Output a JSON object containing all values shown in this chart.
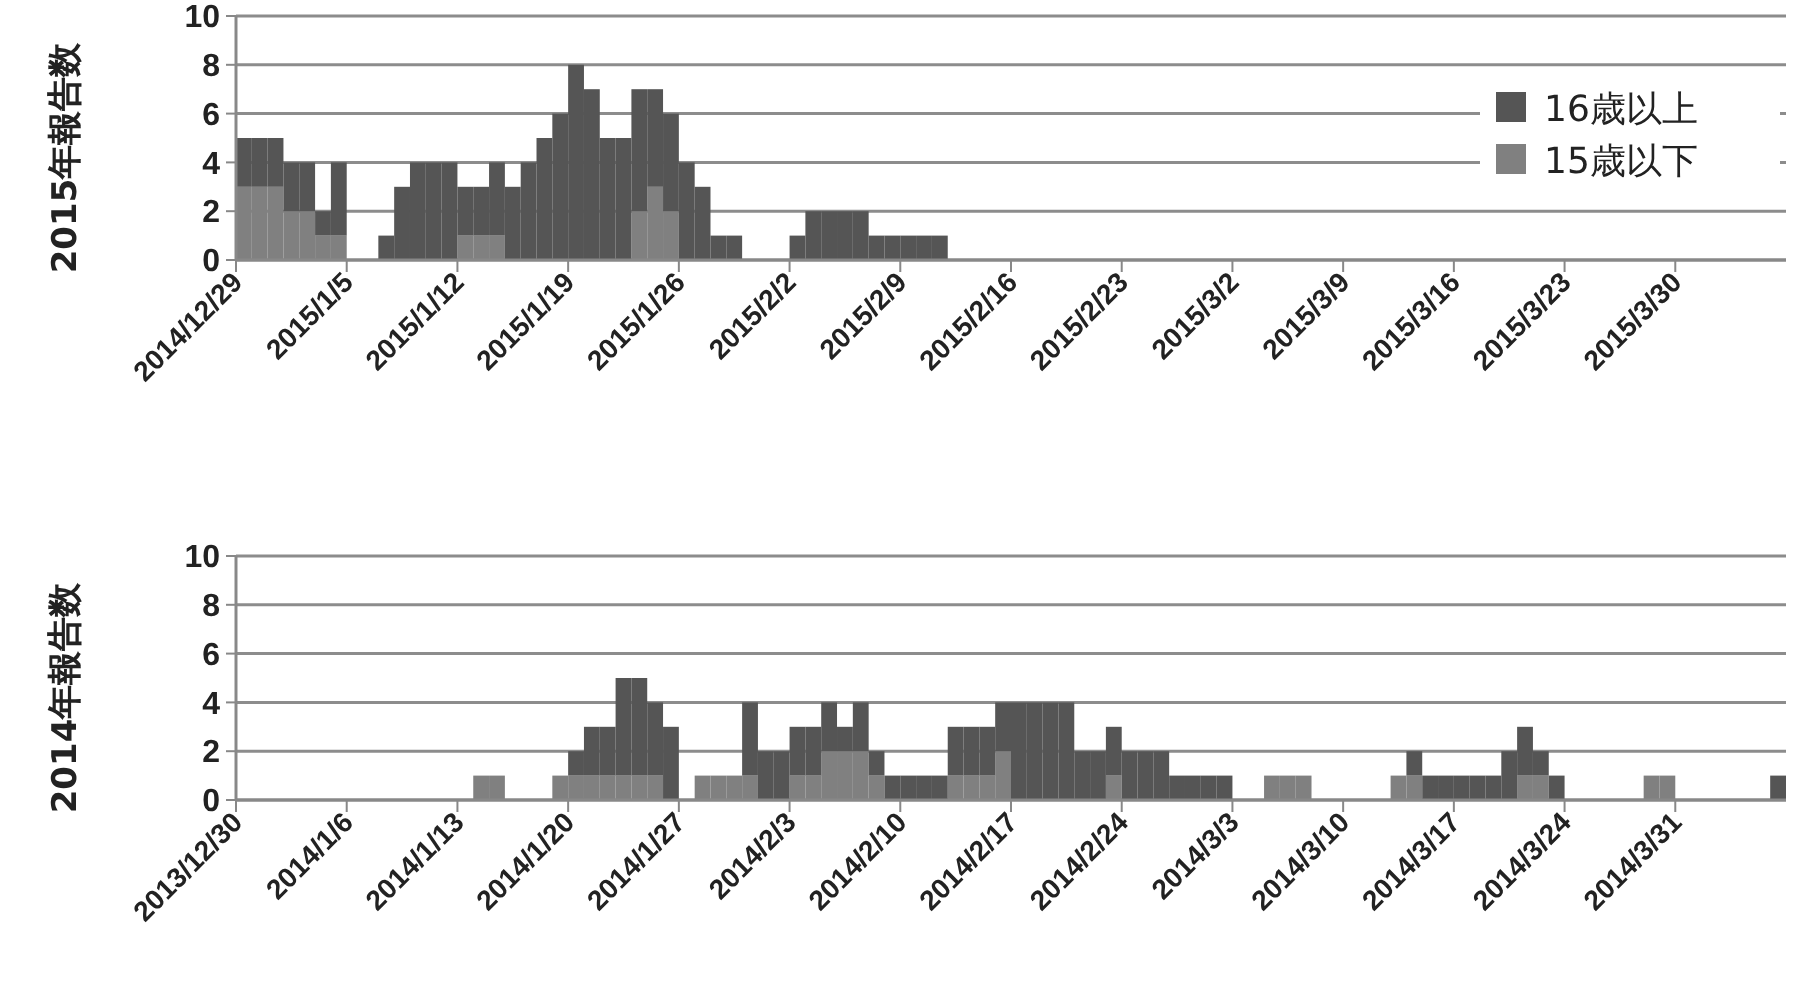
{
  "chart_data": [
    {
      "type": "bar",
      "stacked": true,
      "ylabel": "2015年報告数",
      "ylim": [
        0,
        10
      ],
      "yticks": [
        0,
        2,
        4,
        6,
        8,
        10
      ],
      "grid": "y",
      "legend": "right",
      "xlim": [
        "2014-12-29",
        "2015-04-06"
      ],
      "xticks": [
        {
          "value": "2014-12-29",
          "label": "2014/12/29"
        },
        {
          "value": "2015-01-05",
          "label": "2015/1/5"
        },
        {
          "value": "2015-01-12",
          "label": "2015/1/12"
        },
        {
          "value": "2015-01-19",
          "label": "2015/1/19"
        },
        {
          "value": "2015-01-26",
          "label": "2015/1/26"
        },
        {
          "value": "2015-02-02",
          "label": "2015/2/2"
        },
        {
          "value": "2015-02-09",
          "label": "2015/2/9"
        },
        {
          "value": "2015-02-16",
          "label": "2015/2/16"
        },
        {
          "value": "2015-02-23",
          "label": "2015/2/23"
        },
        {
          "value": "2015-03-02",
          "label": "2015/3/2"
        },
        {
          "value": "2015-03-09",
          "label": "2015/3/9"
        },
        {
          "value": "2015-03-16",
          "label": "2015/3/16"
        },
        {
          "value": "2015-03-23",
          "label": "2015/3/23"
        },
        {
          "value": "2015-03-30",
          "label": "2015/3/30"
        }
      ],
      "x": [
        "2014-12-29",
        "2014-12-30",
        "2014-12-31",
        "2015-01-01",
        "2015-01-02",
        "2015-01-03",
        "2015-01-04",
        "2015-01-05",
        "2015-01-06",
        "2015-01-07",
        "2015-01-08",
        "2015-01-09",
        "2015-01-10",
        "2015-01-11",
        "2015-01-12",
        "2015-01-13",
        "2015-01-14",
        "2015-01-15",
        "2015-01-16",
        "2015-01-17",
        "2015-01-18",
        "2015-01-19",
        "2015-01-20",
        "2015-01-21",
        "2015-01-22",
        "2015-01-23",
        "2015-01-24",
        "2015-01-25",
        "2015-01-26",
        "2015-01-27",
        "2015-01-28",
        "2015-01-29",
        "2015-01-30",
        "2015-01-31",
        "2015-02-01",
        "2015-02-02",
        "2015-02-03",
        "2015-02-04",
        "2015-02-05",
        "2015-02-06",
        "2015-02-07",
        "2015-02-08",
        "2015-02-09",
        "2015-02-10",
        "2015-02-11",
        "2015-02-12",
        "2015-02-13",
        "2015-02-14",
        "2015-02-15",
        "2015-02-16",
        "2015-02-17",
        "2015-02-18",
        "2015-02-19",
        "2015-02-20",
        "2015-02-21",
        "2015-02-22",
        "2015-02-23",
        "2015-02-24",
        "2015-02-25",
        "2015-02-26",
        "2015-02-27",
        "2015-02-28",
        "2015-03-01",
        "2015-03-02",
        "2015-03-03",
        "2015-03-04",
        "2015-03-05",
        "2015-03-06",
        "2015-03-07",
        "2015-03-08",
        "2015-03-09",
        "2015-03-10",
        "2015-03-11",
        "2015-03-12",
        "2015-03-13",
        "2015-03-14",
        "2015-03-15",
        "2015-03-16",
        "2015-03-17",
        "2015-03-18",
        "2015-03-19",
        "2015-03-20",
        "2015-03-21",
        "2015-03-22",
        "2015-03-23",
        "2015-03-24",
        "2015-03-25",
        "2015-03-26",
        "2015-03-27",
        "2015-03-28",
        "2015-03-29",
        "2015-03-30",
        "2015-03-31",
        "2015-04-01",
        "2015-04-02",
        "2015-04-03",
        "2015-04-04",
        "2015-04-05"
      ],
      "series": [
        {
          "name": "15歳以下",
          "color": "#808080",
          "values": [
            3,
            3,
            3,
            2,
            2,
            1,
            1,
            0,
            0,
            0,
            0,
            0,
            0,
            0,
            1,
            1,
            1,
            0,
            0,
            0,
            0,
            0,
            0,
            0,
            0,
            2,
            3,
            2,
            0,
            0,
            0,
            0,
            0,
            0,
            0,
            0,
            0,
            0,
            0,
            0,
            0,
            0,
            0,
            0,
            0,
            0,
            0,
            0,
            0,
            0,
            0,
            0,
            0,
            0,
            0,
            0,
            0,
            0,
            0,
            0,
            0,
            0,
            0,
            0,
            0,
            0,
            0,
            0,
            0,
            0,
            0,
            0,
            0,
            0,
            0,
            0,
            0,
            0,
            0,
            0,
            0,
            0,
            0,
            0,
            0,
            0,
            0,
            0,
            0,
            0,
            0,
            0,
            0,
            0,
            0,
            0,
            0,
            0
          ]
        },
        {
          "name": "16歳以上",
          "color": "#555555",
          "values": [
            2,
            2,
            2,
            2,
            2,
            1,
            3,
            0,
            0,
            1,
            3,
            4,
            4,
            4,
            2,
            2,
            3,
            3,
            4,
            5,
            6,
            8,
            7,
            5,
            5,
            5,
            4,
            4,
            4,
            3,
            1,
            1,
            0,
            0,
            0,
            1,
            2,
            2,
            2,
            2,
            1,
            1,
            1,
            1,
            1,
            0,
            0,
            0,
            0,
            0,
            0,
            0,
            0,
            0,
            0,
            0,
            0,
            0,
            0,
            0,
            0,
            0,
            0,
            0,
            0,
            0,
            0,
            0,
            0,
            0,
            0,
            0,
            0,
            0,
            0,
            0,
            0,
            0,
            0,
            0,
            0,
            0,
            0,
            0,
            0,
            0,
            0,
            0,
            0,
            0,
            0,
            0,
            0,
            0,
            0,
            0,
            0,
            0
          ]
        }
      ]
    },
    {
      "type": "bar",
      "stacked": true,
      "ylabel": "2014年報告数",
      "ylim": [
        0,
        10
      ],
      "yticks": [
        0,
        2,
        4,
        6,
        8,
        10
      ],
      "grid": "y",
      "legend": false,
      "xlim": [
        "2013-12-30",
        "2014-04-07"
      ],
      "xticks": [
        {
          "value": "2013-12-30",
          "label": "2013/12/30"
        },
        {
          "value": "2014-01-06",
          "label": "2014/1/6"
        },
        {
          "value": "2014-01-13",
          "label": "2014/1/13"
        },
        {
          "value": "2014-01-20",
          "label": "2014/1/20"
        },
        {
          "value": "2014-01-27",
          "label": "2014/1/27"
        },
        {
          "value": "2014-02-03",
          "label": "2014/2/3"
        },
        {
          "value": "2014-02-10",
          "label": "2014/2/10"
        },
        {
          "value": "2014-02-17",
          "label": "2014/2/17"
        },
        {
          "value": "2014-02-24",
          "label": "2014/2/24"
        },
        {
          "value": "2014-03-03",
          "label": "2014/3/3"
        },
        {
          "value": "2014-03-10",
          "label": "2014/3/10"
        },
        {
          "value": "2014-03-17",
          "label": "2014/3/17"
        },
        {
          "value": "2014-03-24",
          "label": "2014/3/24"
        },
        {
          "value": "2014-03-31",
          "label": "2014/3/31"
        }
      ],
      "x": [
        "2013-12-30",
        "2013-12-31",
        "2014-01-01",
        "2014-01-02",
        "2014-01-03",
        "2014-01-04",
        "2014-01-05",
        "2014-01-06",
        "2014-01-07",
        "2014-01-08",
        "2014-01-09",
        "2014-01-10",
        "2014-01-11",
        "2014-01-12",
        "2014-01-13",
        "2014-01-14",
        "2014-01-15",
        "2014-01-16",
        "2014-01-17",
        "2014-01-18",
        "2014-01-19",
        "2014-01-20",
        "2014-01-21",
        "2014-01-22",
        "2014-01-23",
        "2014-01-24",
        "2014-01-25",
        "2014-01-26",
        "2014-01-27",
        "2014-01-28",
        "2014-01-29",
        "2014-01-30",
        "2014-01-31",
        "2014-02-01",
        "2014-02-02",
        "2014-02-03",
        "2014-02-04",
        "2014-02-05",
        "2014-02-06",
        "2014-02-07",
        "2014-02-08",
        "2014-02-09",
        "2014-02-10",
        "2014-02-11",
        "2014-02-12",
        "2014-02-13",
        "2014-02-14",
        "2014-02-15",
        "2014-02-16",
        "2014-02-17",
        "2014-02-18",
        "2014-02-19",
        "2014-02-20",
        "2014-02-21",
        "2014-02-22",
        "2014-02-23",
        "2014-02-24",
        "2014-02-25",
        "2014-02-26",
        "2014-02-27",
        "2014-02-28",
        "2014-03-01",
        "2014-03-02",
        "2014-03-03",
        "2014-03-04",
        "2014-03-05",
        "2014-03-06",
        "2014-03-07",
        "2014-03-08",
        "2014-03-09",
        "2014-03-10",
        "2014-03-11",
        "2014-03-12",
        "2014-03-13",
        "2014-03-14",
        "2014-03-15",
        "2014-03-16",
        "2014-03-17",
        "2014-03-18",
        "2014-03-19",
        "2014-03-20",
        "2014-03-21",
        "2014-03-22",
        "2014-03-23",
        "2014-03-24",
        "2014-03-25",
        "2014-03-26",
        "2014-03-27",
        "2014-03-28",
        "2014-03-29",
        "2014-03-30",
        "2014-03-31",
        "2014-04-01",
        "2014-04-02",
        "2014-04-03",
        "2014-04-04",
        "2014-04-05",
        "2014-04-06"
      ],
      "series": [
        {
          "color": "#808080",
          "values": [
            0,
            0,
            0,
            0,
            0,
            0,
            0,
            0,
            0,
            0,
            0,
            0,
            0,
            0,
            0,
            1,
            1,
            0,
            0,
            0,
            1,
            1,
            1,
            1,
            1,
            1,
            1,
            0,
            0,
            1,
            1,
            1,
            1,
            0,
            0,
            1,
            1,
            2,
            2,
            2,
            1,
            0,
            0,
            0,
            0,
            1,
            1,
            1,
            2,
            0,
            0,
            0,
            0,
            0,
            0,
            1,
            0,
            0,
            0,
            0,
            0,
            0,
            0,
            0,
            0,
            1,
            1,
            1,
            0,
            0,
            0,
            0,
            0,
            1,
            1,
            0,
            0,
            0,
            0,
            0,
            0,
            1,
            1,
            0,
            0,
            0,
            0,
            0,
            0,
            1,
            1,
            0,
            0,
            0,
            0,
            0,
            0,
            0
          ]
        },
        {
          "color": "#555555",
          "values": [
            0,
            0,
            0,
            0,
            0,
            0,
            0,
            0,
            0,
            0,
            0,
            0,
            0,
            0,
            0,
            0,
            0,
            0,
            0,
            0,
            0,
            1,
            2,
            2,
            4,
            4,
            3,
            3,
            0,
            0,
            0,
            0,
            3,
            2,
            2,
            2,
            2,
            2,
            1,
            2,
            1,
            1,
            1,
            1,
            1,
            2,
            2,
            2,
            2,
            4,
            4,
            4,
            4,
            2,
            2,
            2,
            2,
            2,
            2,
            1,
            1,
            1,
            1,
            0,
            0,
            0,
            0,
            0,
            0,
            0,
            0,
            0,
            0,
            0,
            1,
            1,
            1,
            1,
            1,
            1,
            2,
            2,
            1,
            1,
            0,
            0,
            0,
            0,
            0,
            0,
            0,
            0,
            0,
            0,
            0,
            0,
            0,
            1
          ]
        }
      ]
    }
  ]
}
